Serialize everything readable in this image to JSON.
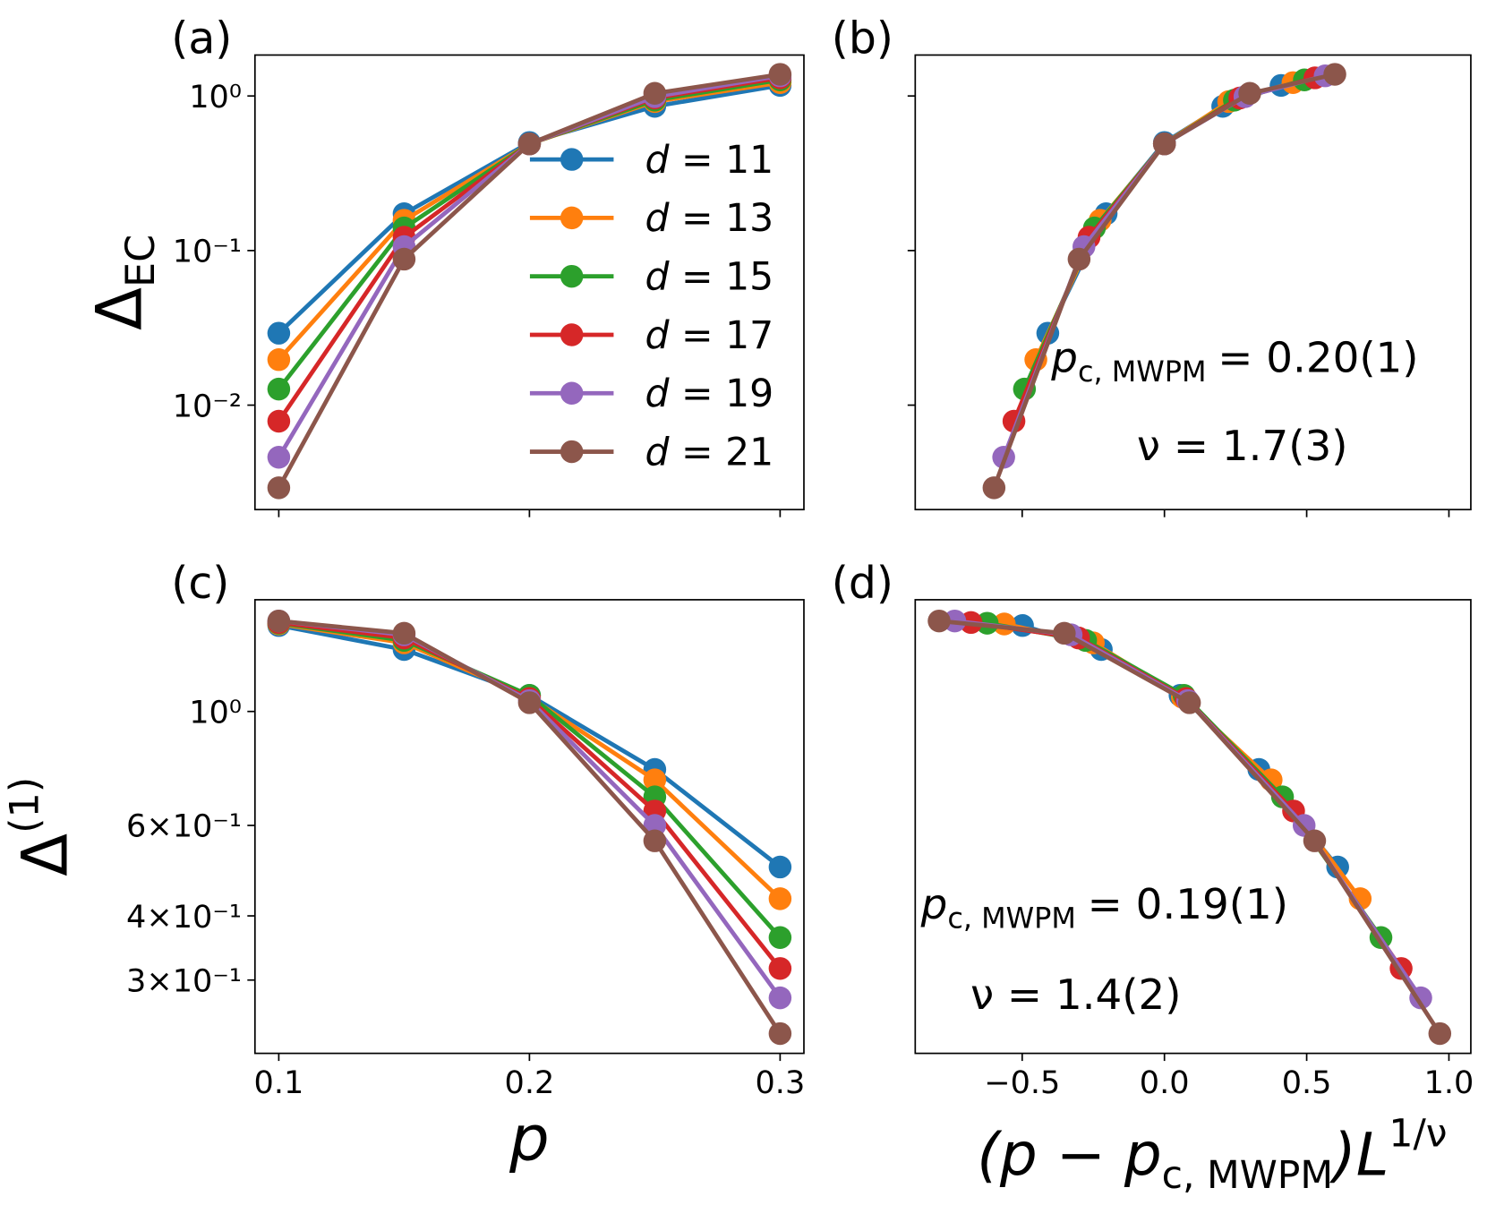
{
  "chart_data": [
    {
      "type": "line",
      "panel_label": "(a)",
      "log_y": true,
      "legend": "upper right",
      "ylabel": {
        "base": "Δ",
        "sub": "EC"
      },
      "xlim": [
        0.0905,
        0.3095
      ],
      "ylim": [
        0.00211,
        1.84
      ],
      "yticks": [
        {
          "value": 1,
          "label": "10⁰"
        },
        {
          "value": 0.1,
          "label": "10⁻¹"
        },
        {
          "value": 0.01,
          "label": "10⁻²"
        }
      ],
      "x": [
        0.1,
        0.15,
        0.2,
        0.25,
        0.3
      ],
      "series": [
        {
          "name": "d = 11",
          "color": "#1f77b4",
          "values": [
            0.0292,
            0.173,
            0.5,
            0.857,
            1.17
          ]
        },
        {
          "name": "d = 13",
          "color": "#ff7f0e",
          "values": [
            0.0197,
            0.157,
            0.49,
            0.92,
            1.22
          ]
        },
        {
          "name": "d = 15",
          "color": "#2ca02c",
          "values": [
            0.0127,
            0.14,
            0.49,
            0.94,
            1.27
          ]
        },
        {
          "name": "d = 17",
          "color": "#d62728",
          "values": [
            0.00787,
            0.122,
            0.49,
            0.97,
            1.31
          ]
        },
        {
          "name": "d = 19",
          "color": "#9467bd",
          "values": [
            0.0046,
            0.106,
            0.49,
            0.99,
            1.35
          ]
        },
        {
          "name": "d = 21",
          "color": "#8c564b",
          "values": [
            0.00292,
            0.088,
            0.49,
            1.04,
            1.38
          ]
        }
      ]
    },
    {
      "type": "line",
      "panel_label": "(b)",
      "log_y": true,
      "xlim": [
        -0.876,
        1.077
      ],
      "ylim": [
        0.00211,
        1.84
      ],
      "annotations": [
        {
          "symbol": "p",
          "sub": "c, MWPM",
          "text": "= 0.20(1)"
        },
        {
          "text": "ν = 1.7(3)"
        }
      ],
      "series": [
        {
          "color": "#1f77b4",
          "x": [
            -0.41,
            -0.205,
            0,
            0.205,
            0.41
          ],
          "values": [
            0.0292,
            0.173,
            0.5,
            0.857,
            1.17
          ]
        },
        {
          "color": "#ff7f0e",
          "x": [
            -0.452,
            -0.226,
            0,
            0.226,
            0.452
          ],
          "values": [
            0.0197,
            0.157,
            0.49,
            0.92,
            1.22
          ]
        },
        {
          "color": "#2ca02c",
          "x": [
            -0.492,
            -0.246,
            0,
            0.246,
            0.492
          ],
          "values": [
            0.0127,
            0.14,
            0.49,
            0.94,
            1.27
          ]
        },
        {
          "color": "#d62728",
          "x": [
            -0.529,
            -0.265,
            0,
            0.265,
            0.529
          ],
          "values": [
            0.00787,
            0.122,
            0.49,
            0.97,
            1.31
          ]
        },
        {
          "color": "#9467bd",
          "x": [
            -0.565,
            -0.283,
            0,
            0.283,
            0.565
          ],
          "values": [
            0.0046,
            0.106,
            0.49,
            0.99,
            1.35
          ]
        },
        {
          "color": "#8c564b",
          "x": [
            -0.599,
            -0.3,
            0,
            0.3,
            0.599
          ],
          "values": [
            0.00292,
            0.088,
            0.49,
            1.04,
            1.38
          ]
        }
      ]
    },
    {
      "type": "line",
      "panel_label": "(c)",
      "log_y": true,
      "ylabel": {
        "base": "Δ",
        "sup": "(1)"
      },
      "xlabel": "p",
      "xlim": [
        0.0905,
        0.3095
      ],
      "ylim": [
        0.216,
        1.65
      ],
      "xticks": [
        0.1,
        0.2,
        0.3
      ],
      "yticks": [
        {
          "value": 1,
          "label": "10⁰"
        },
        {
          "value": 0.6,
          "label": "6×10⁻¹"
        },
        {
          "value": 0.4,
          "label": "4×10⁻¹"
        },
        {
          "value": 0.3,
          "label": "3×10⁻¹"
        }
      ],
      "x": [
        0.1,
        0.15,
        0.2,
        0.25,
        0.3
      ],
      "series": [
        {
          "color": "#1f77b4",
          "values": [
            1.47,
            1.32,
            1.075,
            0.771,
            0.498
          ]
        },
        {
          "color": "#ff7f0e",
          "values": [
            1.48,
            1.36,
            1.066,
            0.736,
            0.432
          ]
        },
        {
          "color": "#2ca02c",
          "values": [
            1.485,
            1.375,
            1.075,
            0.682,
            0.363
          ]
        },
        {
          "color": "#d62728",
          "values": [
            1.49,
            1.39,
            1.06,
            0.64,
            0.316
          ]
        },
        {
          "color": "#9467bd",
          "values": [
            1.5,
            1.41,
            1.05,
            0.6,
            0.277
          ]
        },
        {
          "color": "#8c564b",
          "values": [
            1.5,
            1.42,
            1.04,
            0.56,
            0.236
          ]
        }
      ]
    },
    {
      "type": "line",
      "panel_label": "(d)",
      "log_y": true,
      "xlabel": {
        "text1": "(p − p",
        "sub": "c, MWPM",
        "text2": ")L",
        "sup": "1/ν"
      },
      "xlim": [
        -0.876,
        1.077
      ],
      "ylim": [
        0.216,
        1.65
      ],
      "xticks": [
        {
          "value": -0.5,
          "label": "−0.5"
        },
        {
          "value": 0,
          "label": "0.0"
        },
        0.5,
        {
          "value": 1,
          "label": "1.0"
        }
      ],
      "annotations": [
        {
          "symbol": "p",
          "sub": "c, MWPM",
          "text": "= 0.19(1)"
        },
        {
          "text": "ν = 1.4(2)"
        }
      ],
      "series": [
        {
          "color": "#1f77b4",
          "x": [
            -0.499,
            -0.222,
            0.055,
            0.332,
            0.609
          ],
          "values": [
            1.47,
            1.32,
            1.075,
            0.771,
            0.498
          ]
        },
        {
          "color": "#ff7f0e",
          "x": [
            -0.563,
            -0.25,
            0.063,
            0.375,
            0.688
          ],
          "values": [
            1.48,
            1.36,
            1.066,
            0.736,
            0.432
          ]
        },
        {
          "color": "#2ca02c",
          "x": [
            -0.623,
            -0.277,
            0.069,
            0.415,
            0.761
          ],
          "values": [
            1.485,
            1.375,
            1.075,
            0.682,
            0.363
          ]
        },
        {
          "color": "#d62728",
          "x": [
            -0.68,
            -0.302,
            0.076,
            0.454,
            0.832
          ],
          "values": [
            1.49,
            1.39,
            1.06,
            0.64,
            0.316
          ]
        },
        {
          "color": "#9467bd",
          "x": [
            -0.737,
            -0.328,
            0.082,
            0.491,
            0.901
          ],
          "values": [
            1.5,
            1.41,
            1.05,
            0.6,
            0.277
          ]
        },
        {
          "color": "#8c564b",
          "x": [
            -0.792,
            -0.352,
            0.088,
            0.528,
            0.968
          ],
          "values": [
            1.5,
            1.42,
            1.04,
            0.56,
            0.236
          ]
        }
      ]
    }
  ]
}
